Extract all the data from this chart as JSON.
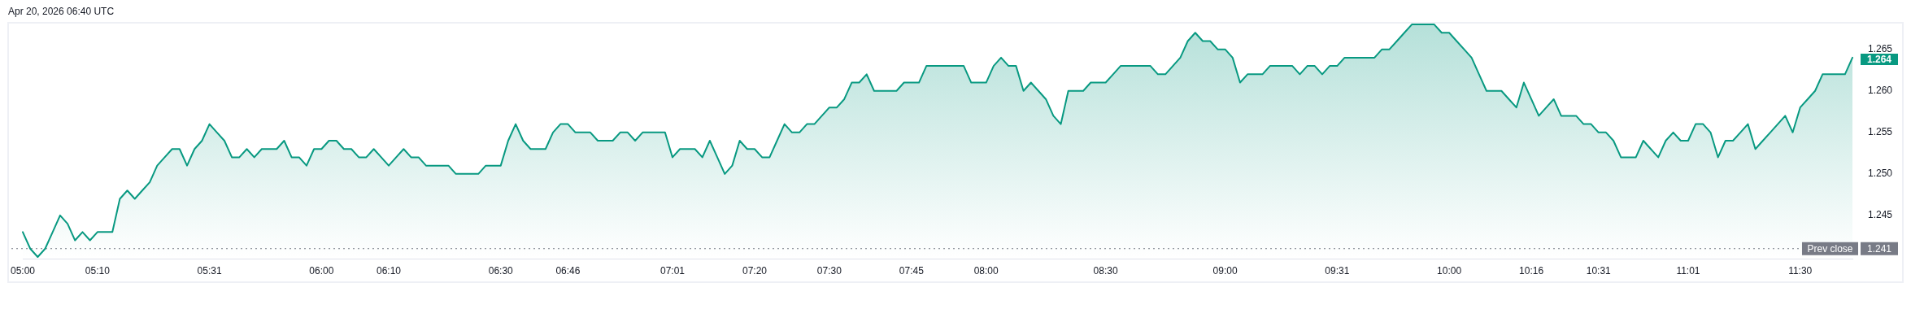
{
  "chart_data": {
    "type": "area",
    "title": "Apr 20, 2026 06:40 UTC",
    "categories": [
      "05:00",
      null,
      null,
      null,
      null,
      null,
      null,
      null,
      null,
      null,
      "05:10",
      null,
      null,
      null,
      null,
      null,
      null,
      null,
      null,
      null,
      null,
      null,
      null,
      null,
      null,
      "05:31",
      null,
      null,
      null,
      null,
      null,
      null,
      null,
      null,
      null,
      null,
      null,
      null,
      null,
      null,
      "06:00",
      null,
      null,
      null,
      null,
      null,
      null,
      null,
      null,
      "06:10",
      null,
      null,
      null,
      null,
      null,
      null,
      null,
      null,
      null,
      null,
      null,
      null,
      null,
      null,
      "06:30",
      null,
      null,
      null,
      null,
      null,
      null,
      null,
      null,
      "06:46",
      null,
      null,
      null,
      null,
      null,
      null,
      null,
      null,
      null,
      null,
      null,
      null,
      null,
      "07:01",
      null,
      null,
      null,
      null,
      null,
      null,
      null,
      null,
      null,
      null,
      "07:20",
      null,
      null,
      null,
      null,
      null,
      null,
      null,
      null,
      null,
      "07:30",
      null,
      null,
      null,
      null,
      null,
      null,
      null,
      null,
      null,
      null,
      "07:45",
      null,
      null,
      null,
      null,
      null,
      null,
      null,
      null,
      null,
      "08:00",
      null,
      null,
      null,
      null,
      null,
      null,
      null,
      null,
      null,
      null,
      null,
      null,
      null,
      null,
      null,
      "08:30",
      null,
      null,
      null,
      null,
      null,
      null,
      null,
      null,
      null,
      null,
      null,
      null,
      null,
      null,
      null,
      "09:00",
      null,
      null,
      null,
      null,
      null,
      null,
      null,
      null,
      null,
      null,
      null,
      null,
      null,
      null,
      "09:31",
      null,
      null,
      null,
      null,
      null,
      null,
      null,
      null,
      null,
      null,
      null,
      null,
      null,
      null,
      "10:00",
      null,
      null,
      null,
      null,
      null,
      null,
      null,
      null,
      null,
      null,
      "10:16",
      null,
      null,
      null,
      null,
      null,
      null,
      null,
      null,
      "10:31",
      null,
      null,
      null,
      null,
      null,
      null,
      null,
      null,
      null,
      null,
      null,
      "11:01",
      null,
      null,
      null,
      null,
      null,
      null,
      null,
      null,
      null,
      null,
      null,
      null,
      null,
      null,
      "11:30",
      null,
      null,
      null,
      null,
      null,
      null,
      null
    ],
    "values": [
      1.243,
      1.241,
      1.24,
      1.241,
      1.243,
      1.245,
      1.244,
      1.242,
      1.243,
      1.242,
      1.243,
      1.243,
      1.243,
      1.247,
      1.248,
      1.247,
      1.248,
      1.249,
      1.251,
      1.252,
      1.253,
      1.253,
      1.251,
      1.253,
      1.254,
      1.256,
      1.255,
      1.254,
      1.252,
      1.252,
      1.253,
      1.252,
      1.253,
      1.253,
      1.253,
      1.254,
      1.252,
      1.252,
      1.251,
      1.253,
      1.253,
      1.254,
      1.254,
      1.253,
      1.253,
      1.252,
      1.252,
      1.253,
      1.252,
      1.251,
      1.252,
      1.253,
      1.252,
      1.252,
      1.251,
      1.251,
      1.251,
      1.251,
      1.25,
      1.25,
      1.25,
      1.25,
      1.251,
      1.251,
      1.251,
      1.254,
      1.256,
      1.254,
      1.253,
      1.253,
      1.253,
      1.255,
      1.256,
      1.256,
      1.255,
      1.255,
      1.255,
      1.254,
      1.254,
      1.254,
      1.255,
      1.255,
      1.254,
      1.255,
      1.255,
      1.255,
      1.255,
      1.252,
      1.253,
      1.253,
      1.253,
      1.252,
      1.254,
      1.252,
      1.25,
      1.251,
      1.254,
      1.253,
      1.253,
      1.252,
      1.252,
      1.254,
      1.256,
      1.255,
      1.255,
      1.256,
      1.256,
      1.257,
      1.258,
      1.258,
      1.259,
      1.261,
      1.261,
      1.262,
      1.26,
      1.26,
      1.26,
      1.26,
      1.261,
      1.261,
      1.261,
      1.263,
      1.263,
      1.263,
      1.263,
      1.263,
      1.263,
      1.261,
      1.261,
      1.261,
      1.263,
      1.264,
      1.263,
      1.263,
      1.26,
      1.261,
      1.26,
      1.259,
      1.257,
      1.256,
      1.26,
      1.26,
      1.26,
      1.261,
      1.261,
      1.261,
      1.262,
      1.263,
      1.263,
      1.263,
      1.263,
      1.263,
      1.262,
      1.262,
      1.263,
      1.264,
      1.266,
      1.267,
      1.266,
      1.266,
      1.265,
      1.265,
      1.264,
      1.261,
      1.262,
      1.262,
      1.262,
      1.263,
      1.263,
      1.263,
      1.263,
      1.262,
      1.263,
      1.263,
      1.262,
      1.263,
      1.263,
      1.264,
      1.264,
      1.264,
      1.264,
      1.264,
      1.265,
      1.265,
      1.266,
      1.267,
      1.268,
      1.268,
      1.268,
      1.268,
      1.267,
      1.267,
      1.266,
      1.265,
      1.264,
      1.262,
      1.26,
      1.26,
      1.26,
      1.259,
      1.258,
      1.261,
      1.259,
      1.257,
      1.258,
      1.259,
      1.257,
      1.257,
      1.257,
      1.256,
      1.256,
      1.255,
      1.255,
      1.254,
      1.252,
      1.252,
      1.252,
      1.254,
      1.253,
      1.252,
      1.254,
      1.255,
      1.254,
      1.254,
      1.256,
      1.256,
      1.255,
      1.252,
      1.254,
      1.254,
      1.255,
      1.256,
      1.253,
      1.254,
      1.255,
      1.256,
      1.257,
      1.255,
      1.258,
      1.259,
      1.26,
      1.262,
      1.262,
      1.262,
      1.262,
      1.264
    ],
    "value_labels": [
      null,
      null,
      null,
      null,
      null,
      null,
      null,
      null,
      null,
      null,
      null,
      null,
      null,
      null,
      null,
      null,
      null,
      null,
      null,
      null,
      null,
      null,
      null,
      null,
      null,
      null,
      null,
      null,
      null,
      null,
      null,
      null,
      null,
      null,
      null,
      null,
      null,
      null,
      null,
      null,
      null,
      null,
      null,
      null,
      null,
      null,
      null,
      null,
      null,
      null,
      null,
      null,
      null,
      null,
      null,
      null,
      null,
      null,
      null,
      null,
      null,
      null,
      null,
      null,
      null,
      null,
      null,
      null,
      null,
      null,
      null,
      null,
      null,
      null,
      null,
      null,
      null,
      null,
      null,
      null,
      null,
      null,
      null,
      null,
      null,
      null,
      null,
      null,
      null,
      null,
      null,
      null,
      null,
      null,
      null,
      null,
      null,
      null,
      null,
      null,
      null,
      null,
      null,
      null,
      null,
      null,
      null,
      null,
      null,
      null,
      null,
      null,
      null,
      null,
      null,
      null,
      null,
      null,
      null,
      null,
      null,
      null,
      null,
      null,
      null,
      null,
      null,
      null,
      null,
      null,
      null,
      null,
      null,
      null,
      null,
      null,
      null,
      null,
      null,
      null,
      null,
      null,
      null,
      null,
      null,
      null,
      null,
      null,
      null,
      null,
      null,
      null,
      null,
      null,
      null,
      null,
      null,
      null,
      null,
      null,
      null,
      null,
      null,
      null,
      null,
      null,
      null,
      null,
      null,
      null,
      null,
      null,
      null,
      null,
      null,
      null,
      null,
      null,
      null,
      null,
      null,
      null,
      null,
      null,
      null,
      null,
      null,
      null,
      null,
      null,
      null,
      null,
      null,
      null,
      null,
      null,
      null,
      null,
      null,
      null,
      null,
      null,
      null,
      null,
      null,
      null,
      null,
      null,
      null,
      null,
      null,
      null,
      null,
      null,
      null,
      null,
      null,
      null,
      null,
      null,
      null,
      null,
      null,
      null,
      null,
      null,
      null,
      null,
      null,
      null,
      null,
      null,
      null,
      null,
      null,
      null,
      null,
      null,
      null,
      null,
      null,
      null,
      null,
      null,
      null,
      "1.264"
    ],
    "color": "#089981",
    "ylim": [
      1.2398,
      1.2683
    ],
    "yticks": [
      1.245,
      {
        "value": 1.25,
        "label": "1.250"
      },
      1.255,
      {
        "value": 1.26,
        "label": "1.260"
      },
      1.265
    ],
    "ref_lines": [
      {
        "axis": "y",
        "value": 1.241,
        "label": "Prev close",
        "color": "#787b86",
        "line_style": "dotted"
      }
    ],
    "annotations": [
      "1.241"
    ],
    "marker": "none"
  }
}
